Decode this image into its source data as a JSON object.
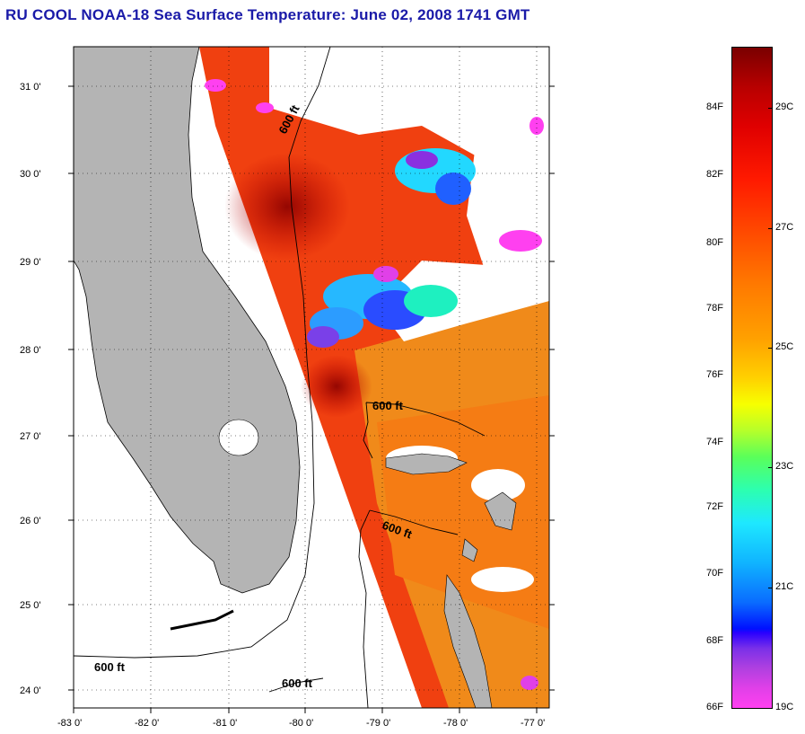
{
  "title": "RU COOL  NOAA-18  Sea Surface Temperature:  June 02, 2008 1741 GMT",
  "map": {
    "lat_labels": [
      "31 0'",
      "30 0'",
      "29 0'",
      "28 0'",
      "27 0'",
      "26 0'",
      "25 0'",
      "24 0'"
    ],
    "lon_labels": [
      "-83 0'",
      "-82 0'",
      "-81 0'",
      "-80 0'",
      "-79 0'",
      "-78 0'",
      "-77 0'"
    ],
    "isobath_label": "600 ft",
    "colors": {
      "land": "#b4b4b4",
      "frame": "#000000",
      "grid": "#000000"
    }
  },
  "colorbar": {
    "fahrenheit_labels": [
      "84F",
      "82F",
      "80F",
      "78F",
      "76F",
      "74F",
      "72F",
      "70F",
      "68F",
      "66F"
    ],
    "celsius_labels": [
      "29C",
      "27C",
      "25C",
      "23C",
      "21C",
      "19C"
    ]
  }
}
